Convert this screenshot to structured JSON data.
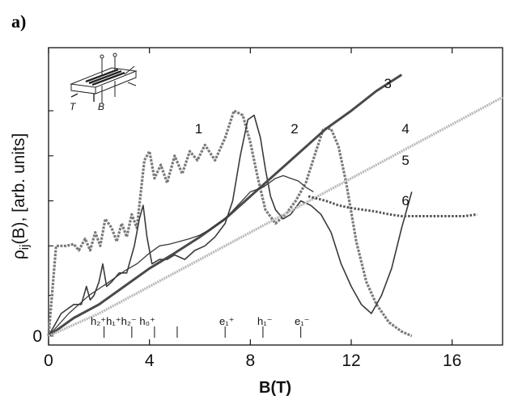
{
  "panel_label": "a)",
  "chart_data": {
    "type": "line",
    "title": "",
    "xlabel": "B(T)",
    "ylabel": "ρ_ij(B), [arb. units]",
    "ylabel_parts": {
      "main": "ρ",
      "sub": "ij",
      "rest": "(B), [arb. units]"
    },
    "xlim": [
      0,
      18
    ],
    "ylim": [
      -0.1,
      3.2
    ],
    "x_ticks": [
      0,
      4,
      8,
      12,
      16
    ],
    "x_tick_labels": [
      "0",
      "4",
      "8",
      "12",
      "16"
    ],
    "y_tick_labels": [
      "0"
    ],
    "y_tick_label_values": [
      0
    ],
    "y_minor_ticks": [
      0.45,
      1.0,
      1.5,
      2.0,
      2.5
    ],
    "grid": false,
    "level_markers": [
      {
        "label": "h₂⁺",
        "x": 2.2
      },
      {
        "label": "h₁⁺",
        "x": 3.3
      },
      {
        "label": "h₂⁻",
        "x": 4.2
      },
      {
        "label": "h₀⁺",
        "x": 5.1
      },
      {
        "label": "e₁⁺",
        "x": 7.0
      },
      {
        "label": "h₁⁻",
        "x": 8.5
      },
      {
        "label": "e₁⁻",
        "x": 10.0
      }
    ],
    "level_text": [
      "h₂⁺h₁⁺h₂⁻ h₀⁺",
      "e₁⁺",
      "h₁⁻",
      "e₁⁻"
    ],
    "series": [
      {
        "name": "1",
        "color": "#7a7a7a",
        "dash": "3 1.5",
        "width": 3.2,
        "label_at": [
          5.8,
          2.25
        ],
        "x": [
          0,
          0.3,
          0.7,
          1.0,
          1.2,
          1.45,
          1.65,
          1.85,
          2.05,
          2.25,
          2.5,
          2.7,
          2.9,
          3.1,
          3.3,
          3.5,
          3.8,
          4.0,
          4.2,
          4.45,
          4.7,
          5.0,
          5.3,
          5.6,
          5.9,
          6.2,
          6.6,
          7.0,
          7.35,
          7.7,
          8.0,
          8.3,
          8.6,
          9.0,
          9.4,
          9.8,
          10.2,
          10.6,
          10.9,
          11.2,
          11.5,
          11.8,
          12.2,
          12.6,
          13.0,
          13.5,
          14.0,
          14.4
        ],
        "y": [
          0,
          1.0,
          1.0,
          1.02,
          0.95,
          1.08,
          0.95,
          1.15,
          1.0,
          1.3,
          1.2,
          1.05,
          1.25,
          1.1,
          1.35,
          1.2,
          1.95,
          2.05,
          1.75,
          1.9,
          1.7,
          2.0,
          1.8,
          2.05,
          1.95,
          2.12,
          1.95,
          2.2,
          2.5,
          2.45,
          2.15,
          1.75,
          1.4,
          1.25,
          1.35,
          1.5,
          1.7,
          2.05,
          2.3,
          2.3,
          2.1,
          1.7,
          1.05,
          0.6,
          0.35,
          0.15,
          0.05,
          0.0
        ]
      },
      {
        "name": "2",
        "color": "#3a3a3a",
        "dash": "",
        "width": 1.6,
        "label_at": [
          9.6,
          2.25
        ],
        "x": [
          0,
          0.5,
          1.0,
          1.3,
          1.5,
          1.65,
          1.8,
          2.0,
          2.15,
          2.3,
          2.5,
          2.8,
          3.1,
          3.4,
          3.6,
          3.75,
          3.9,
          4.1,
          4.4,
          4.7,
          5.0,
          5.4,
          5.8,
          6.2,
          6.6,
          7.0,
          7.3,
          7.6,
          7.9,
          8.15,
          8.4,
          8.6,
          8.8,
          9.0,
          9.3,
          9.6,
          10.0,
          10.4,
          10.8,
          11.2,
          11.6,
          12.0,
          12.4,
          12.8,
          13.2,
          13.6,
          14.0,
          14.4
        ],
        "y": [
          0,
          0.25,
          0.35,
          0.35,
          0.55,
          0.4,
          0.45,
          0.6,
          0.8,
          0.55,
          0.6,
          0.7,
          0.7,
          1.0,
          1.3,
          1.45,
          1.1,
          0.8,
          0.85,
          0.85,
          0.9,
          0.85,
          0.95,
          1.0,
          1.1,
          1.25,
          1.5,
          2.0,
          2.4,
          2.45,
          2.2,
          1.85,
          1.55,
          1.4,
          1.3,
          1.35,
          1.5,
          1.45,
          1.35,
          1.15,
          0.8,
          0.55,
          0.35,
          0.25,
          0.45,
          0.75,
          1.2,
          1.6
        ]
      },
      {
        "name": "3",
        "color": "#4a4a4a",
        "dash": "",
        "width": 3.0,
        "label_at": [
          13.3,
          2.75
        ],
        "x": [
          0,
          1,
          2,
          3,
          4,
          5,
          6,
          7,
          8,
          9,
          10,
          11,
          12,
          13,
          14
        ],
        "y": [
          0,
          0.2,
          0.35,
          0.55,
          0.75,
          0.92,
          1.1,
          1.3,
          1.55,
          1.8,
          2.05,
          2.3,
          2.5,
          2.72,
          2.9
        ]
      },
      {
        "name": "4",
        "color": "#3a3a3a",
        "dash": "",
        "width": 1.3,
        "label_at": [
          14.0,
          2.25
        ],
        "x": [
          0,
          0.8,
          1.6,
          2.4,
          3.0,
          3.5,
          4.0,
          4.4,
          4.8,
          5.2,
          5.6,
          6.0,
          6.5,
          7.0,
          7.5,
          8.0,
          8.5,
          9.0,
          9.3,
          9.6,
          9.9,
          10.2,
          10.5
        ],
        "y": [
          0,
          0.25,
          0.45,
          0.6,
          0.72,
          0.8,
          0.92,
          1.0,
          1.02,
          1.05,
          1.08,
          1.12,
          1.2,
          1.3,
          1.45,
          1.6,
          1.65,
          1.75,
          1.78,
          1.75,
          1.72,
          1.65,
          1.6
        ]
      },
      {
        "name": "5",
        "color": "#b9b9b9",
        "dash": "2 1",
        "width": 3.2,
        "label_at": [
          14.0,
          1.9
        ],
        "x": [
          0,
          2,
          4,
          5,
          6,
          7,
          8,
          9,
          10,
          11,
          12,
          13,
          14,
          15,
          16,
          17,
          18
        ],
        "y": [
          0,
          0.25,
          0.55,
          0.7,
          0.85,
          1.0,
          1.15,
          1.3,
          1.45,
          1.6,
          1.75,
          1.9,
          2.05,
          2.2,
          2.35,
          2.5,
          2.65
        ]
      },
      {
        "name": "6",
        "color": "#555555",
        "dash": "2.5 2",
        "width": 3.0,
        "label_at": [
          14.0,
          1.45
        ],
        "x": [
          10.3,
          11.0,
          11.5,
          12.0,
          12.5,
          13.0,
          13.5,
          14.0,
          14.5,
          15.0,
          15.5,
          16.0,
          16.5,
          17.0
        ],
        "y": [
          1.55,
          1.5,
          1.45,
          1.42,
          1.4,
          1.38,
          1.35,
          1.33,
          1.33,
          1.33,
          1.33,
          1.33,
          1.33,
          1.35
        ]
      }
    ]
  },
  "inset": {
    "label_T": "T",
    "label_B": "B"
  }
}
